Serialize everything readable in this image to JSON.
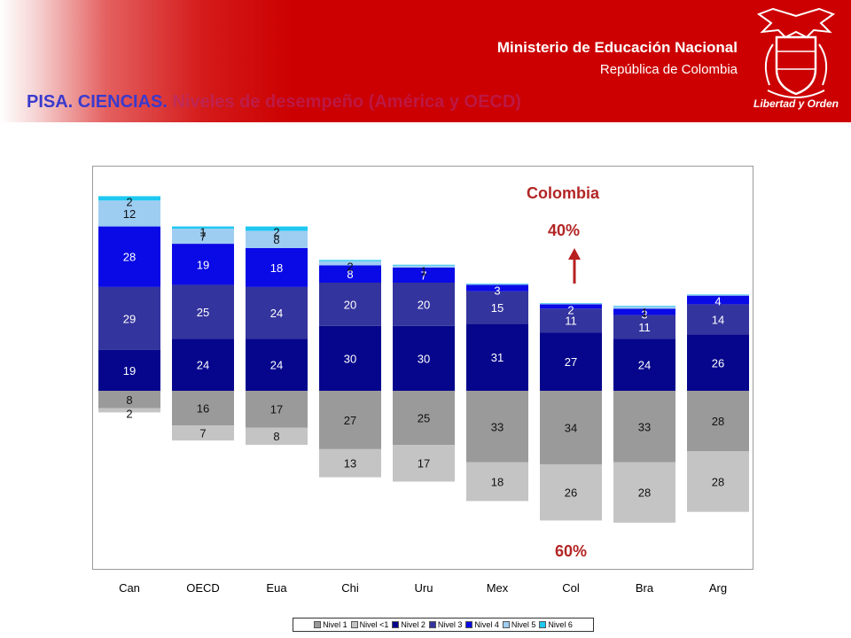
{
  "header": {
    "ministry": "Ministerio de Educación Nacional",
    "republic": "República de Colombia",
    "title_main": "PISA. CIENCIAS.",
    "title_sub": "Niveles de desempeño (América y OECD)",
    "motto": "Libertad y Orden"
  },
  "annotation": {
    "country": "Colombia",
    "above": "40%",
    "below": "60%"
  },
  "colors": {
    "Nivel <1": "#c4c4c4",
    "Nivel 1": "#9a9a9a",
    "Nivel 2": "#06068c",
    "Nivel 3": "#34349e",
    "Nivel 4": "#0a0ae6",
    "Nivel 5": "#9ecdf2",
    "Nivel 6": "#1ec8f0",
    "arrow": "#b82020"
  },
  "chart_data": {
    "type": "bar",
    "stacked": "diverging",
    "baseline": "between Nivel 1 and Nivel 2",
    "categories": [
      "Can",
      "OECD",
      "Eua",
      "Chi",
      "Uru",
      "Mex",
      "Col",
      "Bra",
      "Arg"
    ],
    "series": [
      {
        "name": "Nivel <1",
        "values": [
          2,
          7,
          8,
          13,
          17,
          18,
          26,
          28,
          28
        ],
        "labels": [
          "2",
          "7",
          "8",
          "13",
          "17",
          "18",
          "26",
          "28",
          "28"
        ]
      },
      {
        "name": "Nivel 1",
        "values": [
          8,
          16,
          17,
          27,
          25,
          33,
          34,
          33,
          28
        ],
        "labels": [
          "8",
          "16",
          "17",
          "27",
          "25",
          "33",
          "34",
          "33",
          "28"
        ]
      },
      {
        "name": "Nivel 2",
        "values": [
          19,
          24,
          24,
          30,
          30,
          31,
          27,
          24,
          26
        ],
        "labels": [
          "19",
          "24",
          "24",
          "30",
          "30",
          "31",
          "27",
          "24",
          "26"
        ]
      },
      {
        "name": "Nivel 3",
        "values": [
          29,
          25,
          24,
          20,
          20,
          15,
          11,
          11,
          14
        ],
        "labels": [
          "29",
          "25",
          "24",
          "20",
          "20",
          "15",
          "11",
          "11",
          "14"
        ]
      },
      {
        "name": "Nivel 4",
        "values": [
          28,
          19,
          18,
          8,
          7,
          3,
          2,
          3,
          4
        ],
        "labels": [
          "28",
          "19",
          "18",
          "8",
          "7",
          "3",
          "2",
          "3",
          "4"
        ]
      },
      {
        "name": "Nivel 5",
        "values": [
          12,
          7,
          8,
          2,
          1,
          0.5,
          0.5,
          1,
          0.5
        ],
        "labels": [
          "12",
          "7",
          "8",
          "2",
          "1",
          "",
          "",
          "1",
          ""
        ]
      },
      {
        "name": "Nivel 6",
        "values": [
          2,
          1,
          2,
          0.5,
          0.3,
          0,
          0,
          0.3,
          0
        ],
        "labels": [
          "2",
          "1",
          "2",
          "",
          "",
          "",
          "",
          "",
          ""
        ]
      }
    ],
    "legend": [
      "Nivel 1",
      "Nivel <1",
      "Nivel 2",
      "Nivel 3",
      "Nivel 4",
      "Nivel 5",
      "Nivel 6"
    ],
    "legend_position": "bottom"
  }
}
